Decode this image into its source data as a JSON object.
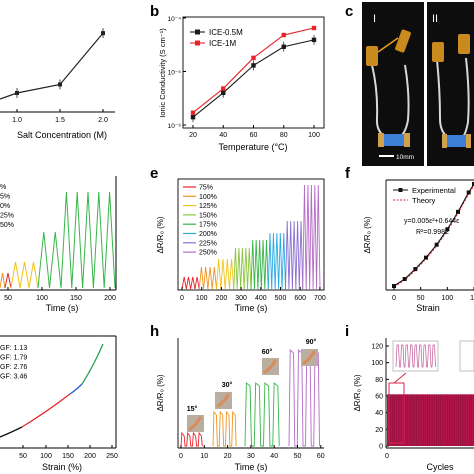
{
  "panels": {
    "a": {
      "xlabel": "Salt Concentration (M)",
      "xticks": [
        "1.0",
        "1.5",
        "2.0"
      ]
    },
    "b": {
      "letter": "b",
      "ylabel": "Ionic Conductivity (S cm⁻¹)",
      "xlabel": "Temperature (°C)",
      "xticks": [
        "20",
        "40",
        "60",
        "80",
        "100"
      ],
      "yticks": [
        "10⁻⁴",
        "10⁻⁵",
        "10⁻⁶"
      ],
      "legend": [
        "ICE-0.5M",
        "ICE-1M"
      ]
    },
    "c": {
      "letter": "c",
      "photo_labels": [
        "I",
        "II"
      ],
      "scale_bar": "10mm"
    },
    "d": {
      "legend": [
        "%",
        "5%",
        "0%",
        "25%",
        "50%"
      ],
      "xlabel": "Time (s)",
      "xticks": [
        "50",
        "100",
        "150",
        "200"
      ]
    },
    "e": {
      "letter": "e",
      "ylabel": "ΔR/R₀ (%)",
      "xlabel": "Time (s)",
      "xticks": [
        "0",
        "100",
        "200",
        "300",
        "400",
        "500",
        "600",
        "700"
      ],
      "legend": [
        "75%",
        "100%",
        "125%",
        "150%",
        "175%",
        "200%",
        "225%",
        "250%"
      ]
    },
    "f": {
      "letter": "f",
      "ylabel": "ΔR/R₀ (%)",
      "xlabel": "Strain",
      "xticks": [
        "0",
        "50",
        "100",
        "15"
      ],
      "legend": [
        "Experimental",
        "Theory"
      ],
      "eq1": "y=0.005ε²+0.644ε",
      "eq2": "R²=0.9982"
    },
    "g": {
      "gf": [
        "GF: 1.13",
        "GF: 1.79",
        "GF: 2.76",
        "GF: 3.46"
      ],
      "xlabel": "Strain (%)",
      "xticks": [
        "50",
        "100",
        "150",
        "200",
        "250"
      ]
    },
    "h": {
      "letter": "h",
      "ylabel": "ΔR/R₀ (%)",
      "xlabel": "Time (s)",
      "xticks": [
        "0",
        "10",
        "20",
        "30",
        "40",
        "50",
        "60"
      ],
      "angles": [
        "15°",
        "30°",
        "60°",
        "90°"
      ]
    },
    "i": {
      "letter": "i",
      "ylabel": "ΔR/R₀ (%)",
      "xlabel": "Cycles",
      "xticks": [
        "0"
      ],
      "yticks": [
        "0",
        "20",
        "40",
        "60",
        "80",
        "100",
        "120"
      ]
    }
  },
  "colors": {
    "ice05": "#1a1a1a",
    "ice1": "#e8232a",
    "strain_series": [
      "#e8232a",
      "#f0931e",
      "#f2c417",
      "#8cc63f",
      "#39b54a",
      "#29abe2",
      "#8b6fd1",
      "#b56cc7"
    ],
    "fatigue": "#b3144b"
  },
  "chart_data": [
    {
      "panel": "a",
      "type": "line",
      "xlabel": "Salt Concentration (M)",
      "x": [
        1.0,
        1.5,
        2.0
      ],
      "y_relative": [
        0.2,
        0.29,
        0.83
      ]
    },
    {
      "panel": "b",
      "type": "line",
      "xlabel": "Temperature (°C)",
      "ylabel": "Ionic Conductivity (S cm⁻¹)",
      "yscale": "log",
      "x": [
        20,
        40,
        60,
        80,
        100
      ],
      "series": [
        {
          "name": "ICE-0.5M",
          "values": [
            1.4e-06,
            4e-06,
            1.3e-05,
            2.9e-05,
            3.9e-05
          ]
        },
        {
          "name": "ICE-1M",
          "values": [
            1.7e-06,
            4.8e-06,
            1.8e-05,
            4.8e-05,
            6.5e-05
          ]
        }
      ]
    },
    {
      "panel": "f",
      "type": "line",
      "xlabel": "Strain",
      "ylabel": "ΔR/R₀ (%)",
      "x": [
        0,
        20,
        40,
        60,
        80,
        100,
        120,
        140,
        150
      ],
      "series": [
        {
          "name": "Experimental",
          "values": [
            0,
            14,
            34,
            57,
            83,
            114,
            149,
            188,
            205
          ]
        }
      ]
    },
    {
      "panel": "h",
      "type": "line",
      "xlabel": "Time (s)",
      "ylabel": "ΔR/R₀ (%)",
      "series": [
        {
          "name": "15°",
          "cycles": 4
        },
        {
          "name": "30°",
          "cycles": 4
        },
        {
          "name": "60°",
          "cycles": 4
        },
        {
          "name": "90°",
          "cycles": 4
        }
      ]
    },
    {
      "panel": "i",
      "type": "line",
      "xlabel": "Cycles",
      "ylabel": "ΔR/R₀ (%)",
      "ylim": [
        0,
        120
      ]
    }
  ]
}
